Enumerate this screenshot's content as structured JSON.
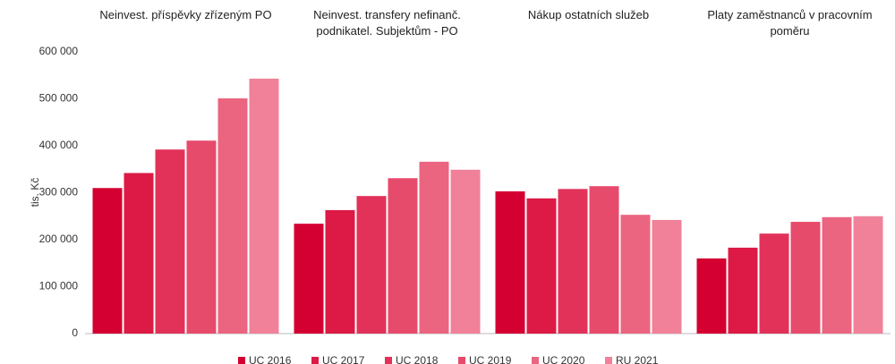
{
  "chart_data": {
    "type": "bar",
    "categories": [
      "Neinvest. příspěvky zřízeným PO",
      "Neinvest. transfery nefinanč. podnikatel. Subjektům - PO",
      "Nákup ostatních služeb",
      "Platy zaměstnanců v pracovním poměru"
    ],
    "series": [
      {
        "name": "UC 2016",
        "color": "#d40032",
        "values": [
          310000,
          234000,
          303000,
          160000
        ]
      },
      {
        "name": "UC 2017",
        "color": "#dc1a45",
        "values": [
          342000,
          263000,
          288000,
          183000
        ]
      },
      {
        "name": "UC 2018",
        "color": "#e2325a",
        "values": [
          392000,
          293000,
          308000,
          213000
        ]
      },
      {
        "name": "UC 2019",
        "color": "#e74b6b",
        "values": [
          411000,
          331000,
          314000,
          238000
        ]
      },
      {
        "name": "UC 2020",
        "color": "#eb6580",
        "values": [
          501000,
          366000,
          253000,
          248000
        ]
      },
      {
        "name": "RU 2021",
        "color": "#f08199",
        "values": [
          543000,
          349000,
          242000,
          250000
        ]
      }
    ],
    "ylabel": "tis. Kč",
    "ylim": [
      0,
      600000
    ],
    "yticks": [
      0,
      {
        "value": 100000,
        "label": "100 000"
      },
      {
        "value": 200000,
        "label": "200 000"
      },
      {
        "value": 300000,
        "label": "300 000"
      },
      {
        "value": 400000,
        "label": "400 000"
      },
      {
        "value": 500000,
        "label": "500 000"
      },
      {
        "value": 600000,
        "label": "600 000"
      }
    ],
    "grid": false,
    "legend": "bottom"
  }
}
